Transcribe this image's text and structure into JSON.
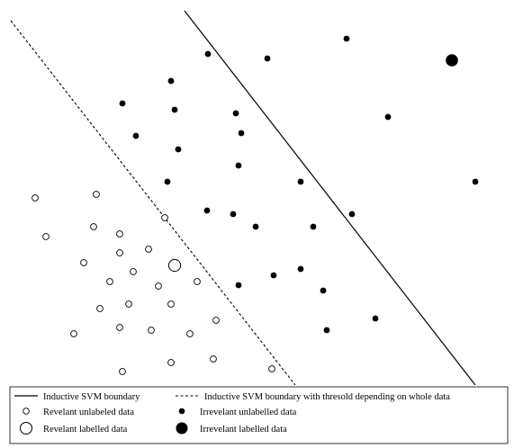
{
  "diagram": {
    "colors": {
      "ink": "#000000",
      "background": "#ffffff"
    },
    "lines": {
      "inductive": {
        "label": "Inductive SVM boundary",
        "style": "solid"
      },
      "transductive": {
        "label": "Inductive SVM boundary with thresold depending on whole data",
        "style": "dashed"
      }
    },
    "markers": {
      "relevant_unlabeled": {
        "label": "Revelant unlabeled data",
        "fill": "open",
        "size": "small"
      },
      "relevant_labelled": {
        "label": "Revelant labelled data",
        "fill": "open",
        "size": "large"
      },
      "irrelevant_unlabelled": {
        "label": "Irrevelant unlabelled data",
        "fill": "filled",
        "size": "small"
      },
      "irrelevant_labelled": {
        "label": "Irrevelant labelled data",
        "fill": "filled",
        "size": "large"
      }
    }
  }
}
